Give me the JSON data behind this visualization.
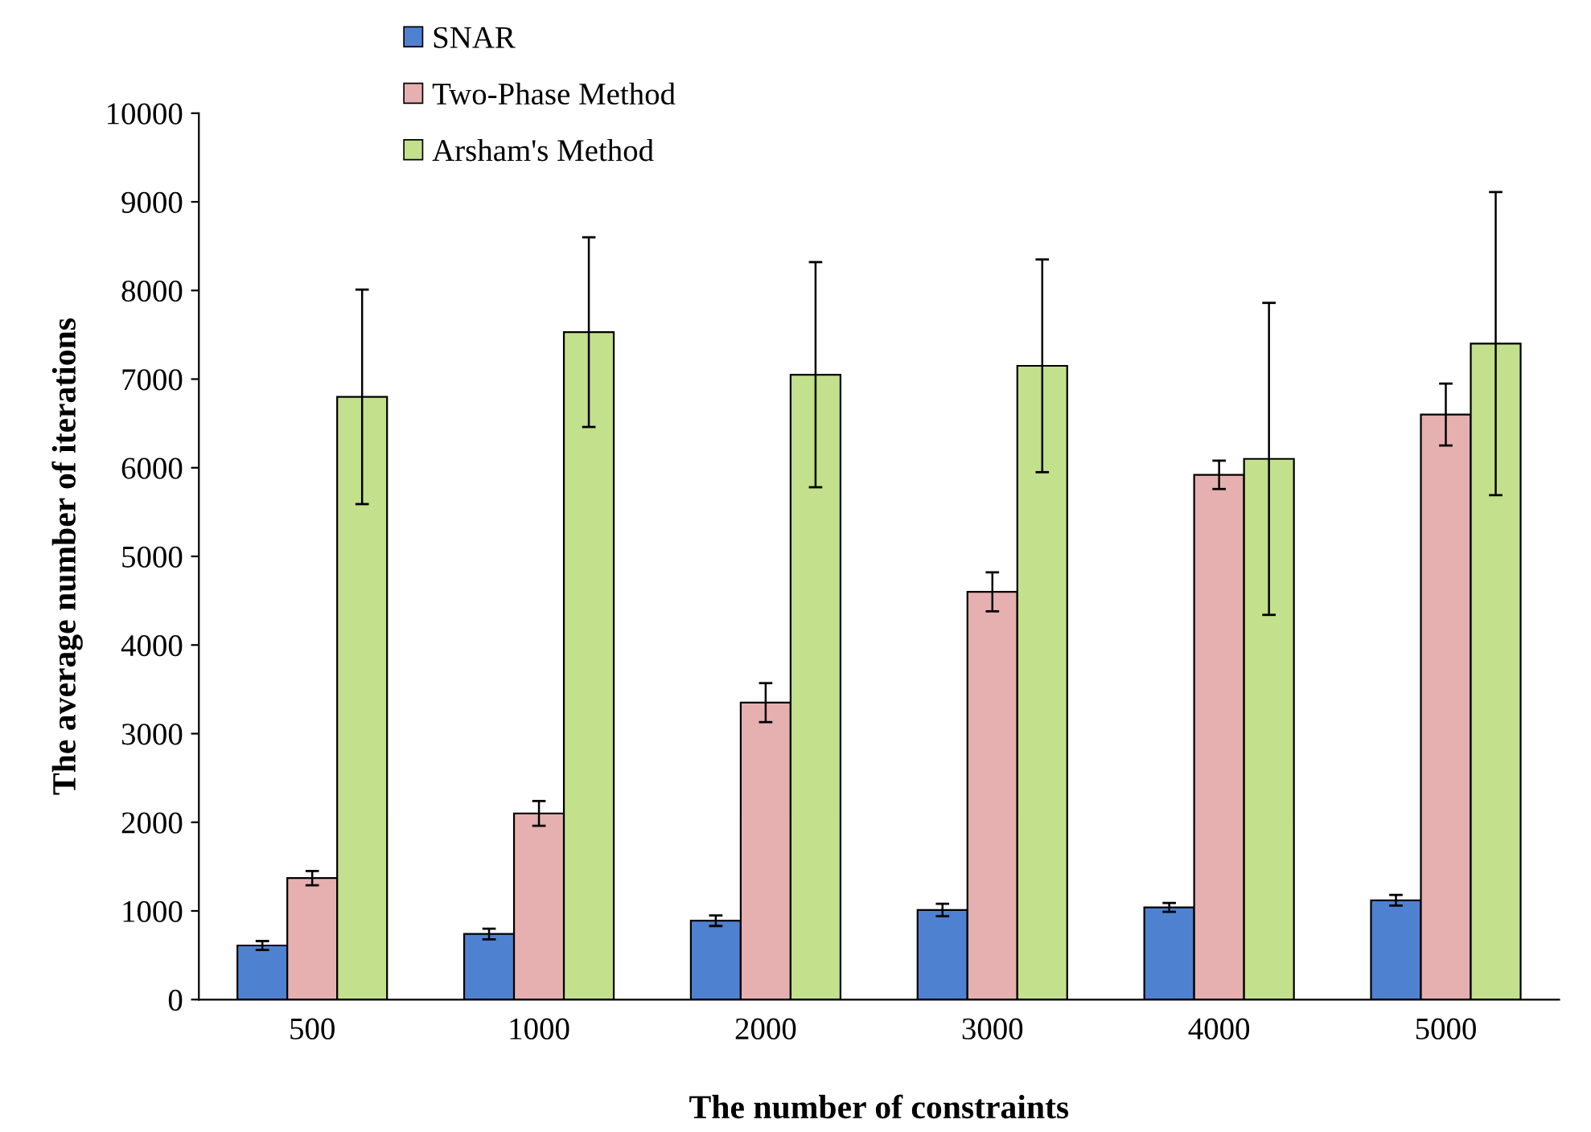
{
  "chart_data": {
    "type": "bar",
    "xlabel": "The number of constraints",
    "ylabel": "The average number of iterations",
    "categories": [
      "500",
      "1000",
      "2000",
      "3000",
      "4000",
      "5000"
    ],
    "series": [
      {
        "name": "SNAR",
        "color": "#4f81d1",
        "values": [
          610,
          740,
          890,
          1010,
          1040,
          1120
        ],
        "errors": [
          50,
          60,
          60,
          70,
          50,
          60
        ]
      },
      {
        "name": "Two-Phase Method",
        "color": "#e6b0b0",
        "values": [
          1370,
          2100,
          3350,
          4600,
          5920,
          6600
        ],
        "errors": [
          80,
          140,
          220,
          220,
          160,
          350
        ]
      },
      {
        "name": "Arsham's Method",
        "color": "#c3e08d",
        "values": [
          6800,
          7530,
          7050,
          7150,
          6100,
          7400
        ],
        "errors": [
          1210,
          1070,
          1270,
          1200,
          1760,
          1710
        ]
      }
    ],
    "ylim": [
      0,
      10000
    ],
    "yticks": [
      0,
      1000,
      2000,
      3000,
      4000,
      5000,
      6000,
      7000,
      8000,
      9000,
      10000
    ],
    "grid": false,
    "legend": "top"
  }
}
